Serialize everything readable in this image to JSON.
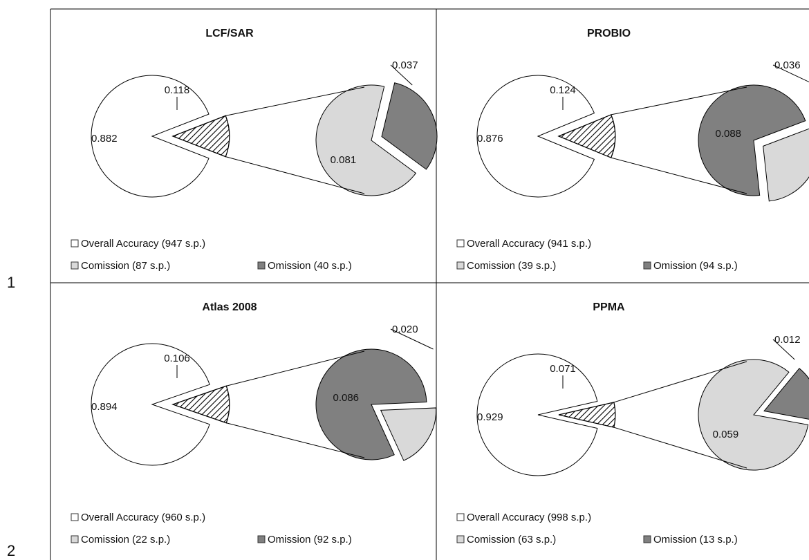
{
  "row_numbers": [
    "1",
    "2"
  ],
  "colors": {
    "accuracy": "#ffffff",
    "comission": "#d9d9d9",
    "omission": "#808080",
    "error": "hatched",
    "border": "#000000"
  },
  "chart_data": [
    {
      "type": "pie",
      "subtype": "pie-of-pie",
      "title": "LCF/SAR",
      "slices": [
        {
          "key": "accuracy",
          "value": 0.882,
          "label": "0.882"
        },
        {
          "key": "error",
          "value": 0.118,
          "label": "0.118"
        }
      ],
      "breakdown": [
        {
          "key": "comission",
          "value": 0.081,
          "label": "0.081"
        },
        {
          "key": "omission",
          "value": 0.037,
          "label": "0.037"
        }
      ],
      "legend": [
        {
          "key": "accuracy",
          "label": "Overall Accuracy (947 s.p.)"
        },
        {
          "key": "comission",
          "label": "Comission (87 s.p.)"
        },
        {
          "key": "omission",
          "label": "Omission (40 s.p.)"
        }
      ],
      "legend_position": "bottom-left"
    },
    {
      "type": "pie",
      "subtype": "pie-of-pie",
      "title": "PROBIO",
      "slices": [
        {
          "key": "accuracy",
          "value": 0.876,
          "label": "0.876"
        },
        {
          "key": "error",
          "value": 0.124,
          "label": "0.124"
        }
      ],
      "breakdown": [
        {
          "key": "omission",
          "value": 0.088,
          "label": "0.088"
        },
        {
          "key": "comission",
          "value": 0.036,
          "label": "0.036"
        }
      ],
      "legend": [
        {
          "key": "accuracy",
          "label": "Overall Accuracy (941 s.p.)"
        },
        {
          "key": "comission",
          "label": "Comission (39 s.p.)"
        },
        {
          "key": "omission",
          "label": "Omission (94 s.p.)"
        }
      ],
      "legend_position": "bottom-left"
    },
    {
      "type": "pie",
      "subtype": "pie-of-pie",
      "title": "Atlas 2008",
      "slices": [
        {
          "key": "accuracy",
          "value": 0.894,
          "label": "0.894"
        },
        {
          "key": "error",
          "value": 0.106,
          "label": "0.106"
        }
      ],
      "breakdown": [
        {
          "key": "omission",
          "value": 0.086,
          "label": "0.086"
        },
        {
          "key": "comission",
          "value": 0.02,
          "label": "0.020"
        }
      ],
      "legend": [
        {
          "key": "accuracy",
          "label": "Overall Accuracy (960 s.p.)"
        },
        {
          "key": "comission",
          "label": "Comission (22 s.p.)"
        },
        {
          "key": "omission",
          "label": "Omission (92 s.p.)"
        }
      ],
      "legend_position": "bottom-left"
    },
    {
      "type": "pie",
      "subtype": "pie-of-pie",
      "title": "PPMA",
      "slices": [
        {
          "key": "accuracy",
          "value": 0.929,
          "label": "0.929"
        },
        {
          "key": "error",
          "value": 0.071,
          "label": "0.071"
        }
      ],
      "breakdown": [
        {
          "key": "comission",
          "value": 0.059,
          "label": "0.059"
        },
        {
          "key": "omission",
          "value": 0.012,
          "label": "0.012"
        }
      ],
      "legend": [
        {
          "key": "accuracy",
          "label": "Overall Accuracy (998 s.p.)"
        },
        {
          "key": "comission",
          "label": "Comission (63 s.p.)"
        },
        {
          "key": "omission",
          "label": "Omission (13 s.p.)"
        }
      ],
      "legend_position": "bottom-left"
    }
  ]
}
